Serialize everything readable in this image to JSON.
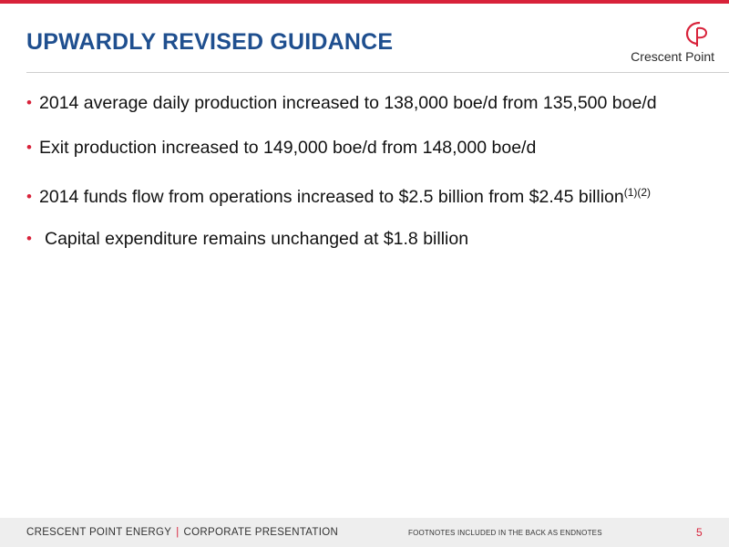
{
  "slide": {
    "title": "UPWARDLY REVISED GUIDANCE",
    "logo_text": "Crescent Point",
    "bullets": [
      {
        "text": "2014 average daily production increased to 138,000 boe/d from 135,500 boe/d",
        "sup": ""
      },
      {
        "text": "Exit production increased to 149,000 boe/d from 148,000 boe/d",
        "sup": ""
      },
      {
        "text": "2014 funds flow from operations increased to $2.5 billion from $2.45 billion",
        "sup": "(1)(2)"
      },
      {
        "text": "Capital expenditure remains unchanged at $1.8 billion",
        "sup": ""
      }
    ]
  },
  "footer": {
    "company": "CRESCENT POINT ENERGY",
    "separator": "|",
    "section": "CORPORATE PRESENTATION",
    "note": "FOOTNOTES INCLUDED IN THE BACK AS ENDNOTES",
    "page_number": "5"
  },
  "colors": {
    "accent_red": "#d8223a",
    "title_blue": "#1f4f8f",
    "footer_bg": "#eeeeee"
  },
  "icons": {
    "bullet": "bullet-dot-icon",
    "logo": "crescent-point-logo-icon"
  }
}
